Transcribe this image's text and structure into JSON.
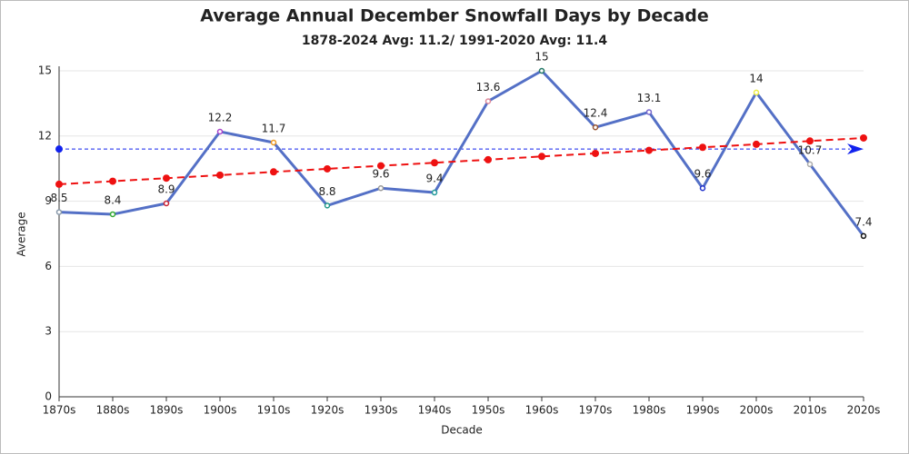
{
  "chart_data": {
    "type": "line",
    "title": "Average Annual December Snowfall Days by Decade",
    "subtitle": "1878-2024 Avg: 11.2/ 1991-2020 Avg: 11.4",
    "x_label": "Decade",
    "y_label": "Average",
    "categories": [
      "1870s",
      "1880s",
      "1890s",
      "1900s",
      "1910s",
      "1920s",
      "1930s",
      "1940s",
      "1950s",
      "1960s",
      "1970s",
      "1980s",
      "1990s",
      "2000s",
      "2010s",
      "2020s"
    ],
    "series": [
      {
        "color": "#5470c6",
        "values": [
          8.5,
          8.4,
          8.9,
          12.2,
          11.7,
          8.8,
          9.6,
          9.4,
          13.6,
          15,
          12.4,
          13.1,
          9.6,
          14,
          10.7,
          7.4
        ],
        "marker_colors": [
          "#8899aa",
          "#33aa33",
          "#cc2233",
          "#aa44cc",
          "#ee9922",
          "#229988",
          "#999999",
          "#229999",
          "#dd8899",
          "#227766",
          "#995533",
          "#7766cc",
          "#2233cc",
          "#eeee44",
          "#aaaaaa",
          "#111111"
        ]
      },
      {
        "color": "#ee1111",
        "dashed": true,
        "values": [
          9.78,
          9.92,
          10.06,
          10.2,
          10.35,
          10.49,
          10.63,
          10.77,
          10.91,
          11.06,
          11.2,
          11.34,
          11.48,
          11.62,
          11.77,
          11.91
        ]
      }
    ],
    "reference_line": {
      "value": 11.4,
      "color": "#1122ee"
    },
    "ylim": [
      0,
      15
    ],
    "yticks": [
      0,
      3,
      6,
      9,
      12,
      15
    ],
    "grid": true
  }
}
